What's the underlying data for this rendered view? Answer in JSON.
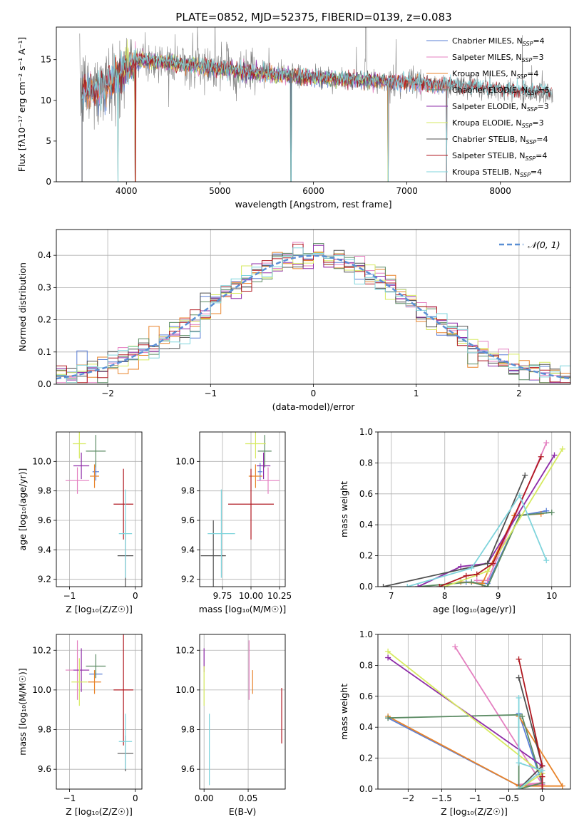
{
  "figure_title": "PLATE=0852, MJD=52375, FIBERID=0139, z=0.083",
  "colors": {
    "Chabrier MILES": "#5a7fd6",
    "Salpeter MILES": "#e47fc0",
    "Kroupa MILES": "#e8832a",
    "Chabrier ELODIE": "#5a8a62",
    "Salpeter ELODIE": "#8e2ca8",
    "Kroupa ELODIE": "#d6ea60",
    "Chabrier STELIB": "#505050",
    "Salpeter STELIB": "#b01820",
    "Kroupa STELIB": "#7fd4dc",
    "data": "#808080",
    "normal": "#5a8fd4"
  },
  "chart_data": [
    {
      "type": "line",
      "id": "spectrum",
      "xlabel": "wavelength [Angstrom, rest frame]",
      "ylabel": "Flux [fλ10⁻¹⁷ erg cm⁻² s⁻¹ A⁻¹]",
      "xlim": [
        3250,
        8750
      ],
      "ylim": [
        0,
        19
      ],
      "xticks": [
        4000,
        5000,
        6000,
        7000,
        8000
      ],
      "yticks": [
        0,
        5,
        10,
        15
      ],
      "legend_position": "top-right",
      "legend": [
        {
          "label": "Chabrier MILES, N",
          "sub": "SSP",
          "suffix": "=4",
          "color_key": "Chabrier MILES"
        },
        {
          "label": "Salpeter MILES, N",
          "sub": "SSP",
          "suffix": "=3",
          "color_key": "Salpeter MILES"
        },
        {
          "label": "Kroupa MILES, N",
          "sub": "SSP",
          "suffix": "=4",
          "color_key": "Kroupa MILES"
        },
        {
          "label": "Chabrier ELODIE, N",
          "sub": "SSP",
          "suffix": "=5",
          "color_key": "Chabrier ELODIE"
        },
        {
          "label": "Salpeter ELODIE, N",
          "sub": "SSP",
          "suffix": "=3",
          "color_key": "Salpeter ELODIE"
        },
        {
          "label": "Kroupa ELODIE, N",
          "sub": "SSP",
          "suffix": "=3",
          "color_key": "Kroupa ELODIE"
        },
        {
          "label": "Chabrier STELIB, N",
          "sub": "SSP",
          "suffix": "=4",
          "color_key": "Chabrier STELIB"
        },
        {
          "label": "Salpeter STELIB, N",
          "sub": "SSP",
          "suffix": "=4",
          "color_key": "Salpeter STELIB"
        },
        {
          "label": "Kroupa STELIB, N",
          "sub": "SSP",
          "suffix": "=4",
          "color_key": "Kroupa STELIB"
        }
      ],
      "continuum_anchor_points": [
        [
          3500,
          11.0
        ],
        [
          3700,
          11.2
        ],
        [
          3900,
          13.0
        ],
        [
          4100,
          14.8
        ],
        [
          4300,
          14.8
        ],
        [
          4600,
          14.5
        ],
        [
          5000,
          13.9
        ],
        [
          5500,
          13.2
        ],
        [
          6000,
          12.8
        ],
        [
          6500,
          12.5
        ],
        [
          7000,
          12.2
        ],
        [
          7500,
          11.7
        ],
        [
          8000,
          11.3
        ],
        [
          8500,
          10.9
        ]
      ],
      "model_ranges": {
        "MILES": [
          3525,
          7425
        ],
        "ELODIE": [
          3900,
          6800
        ],
        "STELIB": [
          3525,
          8550
        ]
      },
      "model_edge_drops": [
        3525,
        3910,
        4095,
        5760,
        6800,
        7425
      ]
    },
    {
      "type": "histogram",
      "id": "residuals",
      "xlabel": "(data-model)/error",
      "ylabel": "Normed distribution",
      "xlim": [
        -2.5,
        2.5
      ],
      "ylim": [
        0,
        0.48
      ],
      "xticks": [
        -2,
        -1,
        0,
        1,
        2
      ],
      "yticks": [
        0.0,
        0.1,
        0.2,
        0.3,
        0.4
      ],
      "bin_width": 0.1,
      "reference_curve": {
        "label": "𝒩(0, 1)",
        "mean": 0,
        "sigma": 1,
        "style": "dashed"
      },
      "legend_position": "top-right"
    },
    {
      "type": "scatter",
      "id": "age_vs_Z",
      "xlabel": "Z [log₁₀(Z/Z☉)]",
      "ylabel": "age  [log₁₀(age/yr)]",
      "xlim": [
        -1.2,
        0.1
      ],
      "ylim": [
        9.15,
        10.2
      ],
      "xticks": [
        -1,
        0
      ],
      "yticks": [
        9.2,
        9.4,
        9.6,
        9.8,
        10.0
      ],
      "points": [
        {
          "model": "Chabrier MILES",
          "x": -0.6,
          "xerr": 0.05,
          "y": 9.93,
          "yerr": 0.06
        },
        {
          "model": "Salpeter MILES",
          "x": -0.88,
          "xerr": 0.18,
          "y": 9.87,
          "yerr": 0.09
        },
        {
          "model": "Kroupa MILES",
          "x": -0.62,
          "xerr": 0.07,
          "y": 9.9,
          "yerr": 0.08
        },
        {
          "model": "Chabrier ELODIE",
          "x": -0.6,
          "xerr": 0.15,
          "y": 10.07,
          "yerr": 0.11
        },
        {
          "model": "Salpeter ELODIE",
          "x": -0.82,
          "xerr": 0.12,
          "y": 9.97,
          "yerr": 0.09
        },
        {
          "model": "Kroupa ELODIE",
          "x": -0.85,
          "xerr": 0.1,
          "y": 10.12,
          "yerr": 0.1
        },
        {
          "model": "Chabrier STELIB",
          "x": -0.15,
          "xerr": 0.12,
          "y": 9.36,
          "yerr": 0.24
        },
        {
          "model": "Salpeter STELIB",
          "x": -0.18,
          "xerr": 0.15,
          "y": 9.71,
          "yerr": 0.24
        },
        {
          "model": "Kroupa STELIB",
          "x": -0.15,
          "xerr": 0.1,
          "y": 9.51,
          "yerr": 0.3
        }
      ]
    },
    {
      "type": "scatter",
      "id": "age_vs_mass",
      "xlabel": "mass [log₁₀(M/M☉)]",
      "xlim": [
        9.55,
        10.3
      ],
      "ylim": [
        9.15,
        10.2
      ],
      "xticks": [
        9.75,
        10.0,
        10.25
      ],
      "xticklabels": [
        "9.75",
        "10.00",
        "10.25"
      ],
      "yticks": [
        9.2,
        9.4,
        9.6,
        9.8,
        10.0
      ],
      "points": [
        {
          "model": "Chabrier MILES",
          "x": 10.08,
          "xerr": 0.02,
          "y": 9.93,
          "yerr": 0.06
        },
        {
          "model": "Salpeter MILES",
          "x": 10.15,
          "xerr": 0.1,
          "y": 9.87,
          "yerr": 0.09
        },
        {
          "model": "Kroupa MILES",
          "x": 10.04,
          "xerr": 0.06,
          "y": 9.9,
          "yerr": 0.08
        },
        {
          "model": "Chabrier ELODIE",
          "x": 10.12,
          "xerr": 0.06,
          "y": 10.07,
          "yerr": 0.11
        },
        {
          "model": "Salpeter ELODIE",
          "x": 10.11,
          "xerr": 0.06,
          "y": 9.97,
          "yerr": 0.09
        },
        {
          "model": "Kroupa ELODIE",
          "x": 10.04,
          "xerr": 0.09,
          "y": 10.12,
          "yerr": 0.1
        },
        {
          "model": "Chabrier STELIB",
          "x": 9.67,
          "xerr": 0.11,
          "y": 9.36,
          "yerr": 0.24
        },
        {
          "model": "Salpeter STELIB",
          "x": 10.0,
          "xerr": 0.2,
          "y": 9.71,
          "yerr": 0.24
        },
        {
          "model": "Kroupa STELIB",
          "x": 9.74,
          "xerr": 0.12,
          "y": 9.51,
          "yerr": 0.3
        }
      ]
    },
    {
      "type": "line",
      "id": "mass_weight_vs_age",
      "xlabel": "age  [log₁₀(age/yr)]",
      "ylabel": "mass weight",
      "xlim": [
        6.75,
        10.35
      ],
      "ylim": [
        0,
        1.0
      ],
      "xticks": [
        7,
        8,
        9,
        10
      ],
      "yticks": [
        0.0,
        0.2,
        0.4,
        0.6,
        0.8,
        1.0
      ],
      "series": [
        {
          "model": "Chabrier MILES",
          "x": [
            8.4,
            8.8,
            9.4,
            9.9
          ],
          "y": [
            0.03,
            0.02,
            0.46,
            0.49
          ]
        },
        {
          "model": "Salpeter MILES",
          "x": [
            8.6,
            8.8,
            9.9
          ],
          "y": [
            0.04,
            0.04,
            0.93
          ]
        },
        {
          "model": "Kroupa MILES",
          "x": [
            8.3,
            8.7,
            9.3,
            9.8
          ],
          "y": [
            0.03,
            0.02,
            0.46,
            0.47
          ]
        },
        {
          "model": "Chabrier ELODIE",
          "x": [
            7.5,
            8.5,
            8.8,
            9.4,
            10.0
          ],
          "y": [
            0.0,
            0.03,
            0.0,
            0.46,
            0.48
          ]
        },
        {
          "model": "Salpeter ELODIE",
          "x": [
            7.5,
            8.3,
            8.8,
            10.05
          ],
          "y": [
            0.0,
            0.13,
            0.15,
            0.85
          ]
        },
        {
          "model": "Kroupa ELODIE",
          "x": [
            8.0,
            8.8,
            10.2
          ],
          "y": [
            0.0,
            0.1,
            0.89
          ]
        },
        {
          "model": "Chabrier STELIB",
          "x": [
            6.85,
            8.8,
            9.5
          ],
          "y": [
            0.0,
            0.15,
            0.72
          ]
        },
        {
          "model": "Salpeter STELIB",
          "x": [
            7.9,
            8.4,
            8.6,
            8.9,
            9.8
          ],
          "y": [
            0.0,
            0.07,
            0.08,
            0.15,
            0.84
          ]
        },
        {
          "model": "Kroupa STELIB",
          "x": [
            7.3,
            8.5,
            9.4,
            9.9
          ],
          "y": [
            0.0,
            0.12,
            0.59,
            0.17
          ]
        }
      ]
    },
    {
      "type": "scatter",
      "id": "mass_vs_Z",
      "xlabel": "Z [log₁₀(Z/Z☉)]",
      "ylabel": "mass [log₁₀(M/M☉)]",
      "xlim": [
        -1.2,
        0.1
      ],
      "ylim": [
        9.5,
        10.28
      ],
      "xticks": [
        -1,
        0
      ],
      "yticks": [
        9.6,
        9.8,
        10.0,
        10.2
      ],
      "points": [
        {
          "model": "Chabrier MILES",
          "x": -0.6,
          "xerr": 0.1,
          "y": 10.08,
          "yerr": 0.02
        },
        {
          "model": "Salpeter MILES",
          "x": -0.88,
          "xerr": 0.18,
          "y": 10.1,
          "yerr": 0.15
        },
        {
          "model": "Kroupa MILES",
          "x": -0.62,
          "xerr": 0.1,
          "y": 10.04,
          "yerr": 0.06
        },
        {
          "model": "Chabrier ELODIE",
          "x": -0.6,
          "xerr": 0.15,
          "y": 10.12,
          "yerr": 0.06
        },
        {
          "model": "Salpeter ELODIE",
          "x": -0.82,
          "xerr": 0.12,
          "y": 10.1,
          "yerr": 0.11
        },
        {
          "model": "Kroupa ELODIE",
          "x": -0.85,
          "xerr": 0.12,
          "y": 10.04,
          "yerr": 0.12
        },
        {
          "model": "Chabrier STELIB",
          "x": -0.15,
          "xerr": 0.12,
          "y": 9.68,
          "yerr": 0.09
        },
        {
          "model": "Salpeter STELIB",
          "x": -0.18,
          "xerr": 0.15,
          "y": 10.0,
          "yerr": 0.28
        },
        {
          "model": "Kroupa STELIB",
          "x": -0.15,
          "xerr": 0.1,
          "y": 9.74,
          "yerr": 0.14
        }
      ]
    },
    {
      "type": "scatter",
      "id": "mass_vs_ebv",
      "xlabel": "E(B-V)",
      "xlim": [
        -0.005,
        0.092
      ],
      "ylim": [
        9.5,
        10.28
      ],
      "xticks": [
        0.0,
        0.05
      ],
      "xticklabels": [
        "0.00",
        "0.05"
      ],
      "yticks": [
        9.6,
        9.8,
        10.0,
        10.2
      ],
      "points": [
        {
          "model": "Salpeter MILES",
          "x": 0.051,
          "y": 10.1,
          "yerr": 0.15
        },
        {
          "model": "Kroupa MILES",
          "x": 0.055,
          "y": 10.04,
          "yerr": 0.06
        },
        {
          "model": "Salpeter ELODIE",
          "x": 0.0,
          "y": 10.15,
          "yerr": 0.06
        },
        {
          "model": "Kroupa ELODIE",
          "x": 0.0,
          "y": 10.02,
          "yerr": 0.1
        },
        {
          "model": "Salpeter STELIB",
          "x": 0.088,
          "y": 9.87,
          "yerr": 0.14
        },
        {
          "model": "Kroupa STELIB",
          "x": 0.006,
          "y": 9.7,
          "yerr": 0.18
        }
      ]
    },
    {
      "type": "line",
      "id": "mass_weight_vs_Z",
      "xlabel": "Z [log₁₀(Z/Z☉)]",
      "ylabel": "mass weight",
      "xlim": [
        -2.45,
        0.42
      ],
      "ylim": [
        0,
        1.0
      ],
      "xticks": [
        -2.0,
        -1.5,
        -1.0,
        -0.5,
        0.0
      ],
      "yticks": [
        0.0,
        0.2,
        0.4,
        0.6,
        0.8,
        1.0
      ],
      "series": [
        {
          "model": "Chabrier MILES",
          "x": [
            -2.3,
            -0.35,
            0.0,
            -0.35
          ],
          "y": [
            0.46,
            0.02,
            0.03,
            0.49
          ]
        },
        {
          "model": "Salpeter MILES",
          "x": [
            -1.3,
            0.0,
            -0.35,
            0.0
          ],
          "y": [
            0.92,
            0.03,
            0.03,
            0.04
          ]
        },
        {
          "model": "Kroupa MILES",
          "x": [
            -2.3,
            -0.35,
            0.3,
            -0.35
          ],
          "y": [
            0.47,
            0.02,
            0.02,
            0.47
          ]
        },
        {
          "model": "Chabrier ELODIE",
          "x": [
            -2.3,
            -0.35,
            -0.35,
            0.0,
            -0.3
          ],
          "y": [
            0.46,
            0.48,
            0.0,
            0.04,
            0.47
          ]
        },
        {
          "model": "Salpeter ELODIE",
          "x": [
            -2.3,
            0.0,
            0.0
          ],
          "y": [
            0.85,
            0.15,
            0.0
          ]
        },
        {
          "model": "Kroupa ELODIE",
          "x": [
            -2.3,
            0.0,
            -0.35
          ],
          "y": [
            0.89,
            0.1,
            0.0
          ]
        },
        {
          "model": "Chabrier STELIB",
          "x": [
            -0.35,
            0.0,
            -0.35
          ],
          "y": [
            0.72,
            0.15,
            0.0
          ]
        },
        {
          "model": "Salpeter STELIB",
          "x": [
            -0.35,
            0.0,
            0.0,
            0.0
          ],
          "y": [
            0.84,
            0.15,
            0.08,
            0.0
          ]
        },
        {
          "model": "Kroupa STELIB",
          "x": [
            -0.35,
            -0.35,
            0.0,
            -0.35
          ],
          "y": [
            0.59,
            0.17,
            0.12,
            0.0
          ]
        }
      ]
    }
  ]
}
